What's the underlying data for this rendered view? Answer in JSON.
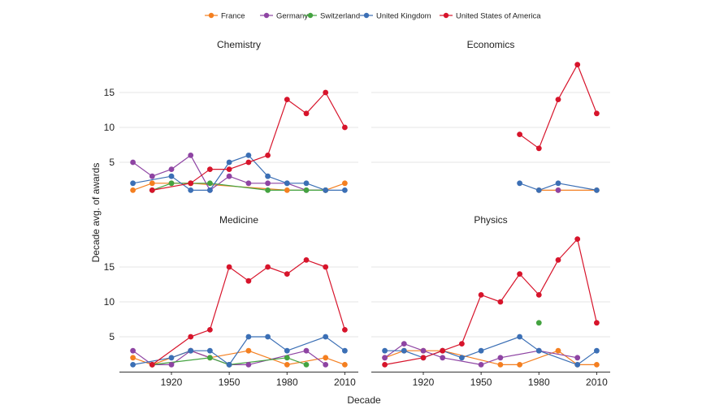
{
  "chart_data": {
    "type": "line",
    "xlabel": "Decade",
    "ylabel": "Decade avg. of awards",
    "x_ticks": [
      1920,
      1950,
      1980,
      2010
    ],
    "y_ticks": [
      5,
      10,
      15
    ],
    "xlim": [
      1893,
      2017
    ],
    "ylim": [
      0,
      20
    ],
    "legend_position": "top",
    "grid": "horizontal",
    "series_legend": [
      {
        "name": "France",
        "color": "#f47f20"
      },
      {
        "name": "Germany",
        "color": "#8e44a3"
      },
      {
        "name": "Switzerland",
        "color": "#44a340"
      },
      {
        "name": "United Kingdom",
        "color": "#3b6fb5"
      },
      {
        "name": "United States of America",
        "color": "#d7142b"
      }
    ],
    "panels": [
      {
        "title": "Chemistry",
        "series": [
          {
            "name": "France",
            "points": [
              [
                1900,
                1
              ],
              [
                1910,
                2
              ],
              [
                1920,
                2
              ],
              [
                1930,
                2
              ],
              [
                1980,
                1
              ],
              [
                2000,
                1
              ],
              [
                2010,
                2
              ]
            ]
          },
          {
            "name": "Germany",
            "points": [
              [
                1900,
                5
              ],
              [
                1910,
                3
              ],
              [
                1920,
                4
              ],
              [
                1930,
                6
              ],
              [
                1940,
                1
              ],
              [
                1950,
                3
              ],
              [
                1960,
                2
              ],
              [
                1970,
                2
              ],
              [
                1980,
                2
              ],
              [
                1990,
                1
              ],
              [
                2000,
                1
              ]
            ]
          },
          {
            "name": "Switzerland",
            "points": [
              [
                1910,
                1
              ],
              [
                1920,
                2
              ],
              [
                1930,
                2
              ],
              [
                1940,
                2
              ],
              [
                1970,
                1
              ],
              [
                1990,
                1
              ],
              [
                2000,
                1
              ]
            ]
          },
          {
            "name": "United Kingdom",
            "points": [
              [
                1900,
                2
              ],
              [
                1920,
                3
              ],
              [
                1930,
                1
              ],
              [
                1940,
                1
              ],
              [
                1950,
                5
              ],
              [
                1960,
                6
              ],
              [
                1970,
                3
              ],
              [
                1980,
                2
              ],
              [
                1990,
                2
              ],
              [
                2000,
                1
              ],
              [
                2010,
                1
              ]
            ]
          },
          {
            "name": "United States of America",
            "points": [
              [
                1910,
                1
              ],
              [
                1930,
                2
              ],
              [
                1940,
                4
              ],
              [
                1950,
                4
              ],
              [
                1960,
                5
              ],
              [
                1970,
                6
              ],
              [
                1980,
                14
              ],
              [
                1990,
                12
              ],
              [
                2000,
                15
              ],
              [
                2010,
                10
              ]
            ]
          }
        ]
      },
      {
        "title": "Economics",
        "series": [
          {
            "name": "France",
            "points": [
              [
                1980,
                1
              ],
              [
                1990,
                1
              ],
              [
                2010,
                1
              ]
            ]
          },
          {
            "name": "Germany",
            "points": [
              [
                1990,
                1
              ]
            ]
          },
          {
            "name": "United Kingdom",
            "points": [
              [
                1970,
                2
              ],
              [
                1980,
                1
              ],
              [
                1990,
                2
              ],
              [
                2010,
                1
              ]
            ]
          },
          {
            "name": "United States of America",
            "points": [
              [
                1970,
                9
              ],
              [
                1980,
                7
              ],
              [
                1990,
                14
              ],
              [
                2000,
                19
              ],
              [
                2010,
                12
              ]
            ]
          }
        ]
      },
      {
        "title": "Medicine",
        "series": [
          {
            "name": "France",
            "points": [
              [
                1900,
                2
              ],
              [
                1910,
                1
              ],
              [
                1930,
                3
              ],
              [
                1940,
                2
              ],
              [
                1960,
                3
              ],
              [
                1980,
                1
              ],
              [
                2000,
                2
              ],
              [
                2010,
                1
              ]
            ]
          },
          {
            "name": "Germany",
            "points": [
              [
                1900,
                3
              ],
              [
                1910,
                1
              ],
              [
                1920,
                1
              ],
              [
                1930,
                3
              ],
              [
                1950,
                1
              ],
              [
                1960,
                1
              ],
              [
                1990,
                3
              ],
              [
                2000,
                1
              ]
            ]
          },
          {
            "name": "Switzerland",
            "points": [
              [
                1910,
                1
              ],
              [
                1940,
                2
              ],
              [
                1950,
                1
              ],
              [
                1980,
                2
              ],
              [
                1990,
                1
              ]
            ]
          },
          {
            "name": "United Kingdom",
            "points": [
              [
                1900,
                1
              ],
              [
                1920,
                2
              ],
              [
                1930,
                3
              ],
              [
                1940,
                3
              ],
              [
                1950,
                1
              ],
              [
                1960,
                5
              ],
              [
                1970,
                5
              ],
              [
                1980,
                3
              ],
              [
                2000,
                5
              ],
              [
                2010,
                3
              ]
            ]
          },
          {
            "name": "United States of America",
            "points": [
              [
                1910,
                1
              ],
              [
                1930,
                5
              ],
              [
                1940,
                6
              ],
              [
                1950,
                15
              ],
              [
                1960,
                13
              ],
              [
                1970,
                15
              ],
              [
                1980,
                14
              ],
              [
                1990,
                16
              ],
              [
                2000,
                15
              ],
              [
                2010,
                6
              ]
            ]
          }
        ]
      },
      {
        "title": "Physics",
        "series": [
          {
            "name": "France",
            "points": [
              [
                1900,
                2
              ],
              [
                1910,
                3
              ],
              [
                1920,
                3
              ],
              [
                1930,
                3
              ],
              [
                1960,
                1
              ],
              [
                1970,
                1
              ],
              [
                1990,
                3
              ],
              [
                2000,
                1
              ],
              [
                2010,
                1
              ]
            ]
          },
          {
            "name": "Germany",
            "points": [
              [
                1900,
                2
              ],
              [
                1910,
                4
              ],
              [
                1920,
                3
              ],
              [
                1930,
                2
              ],
              [
                1950,
                1
              ],
              [
                1960,
                2
              ],
              [
                1980,
                3
              ],
              [
                2000,
                2
              ]
            ]
          },
          {
            "name": "Switzerland",
            "points": [
              [
                1980,
                7
              ]
            ]
          },
          {
            "name": "United Kingdom",
            "points": [
              [
                1900,
                3
              ],
              [
                1910,
                3
              ],
              [
                1920,
                2
              ],
              [
                1930,
                3
              ],
              [
                1940,
                2
              ],
              [
                1950,
                3
              ],
              [
                1970,
                5
              ],
              [
                1980,
                3
              ],
              [
                2000,
                1
              ],
              [
                2010,
                3
              ]
            ]
          },
          {
            "name": "United States of America",
            "points": [
              [
                1900,
                1
              ],
              [
                1920,
                2
              ],
              [
                1930,
                3
              ],
              [
                1940,
                4
              ],
              [
                1950,
                11
              ],
              [
                1960,
                10
              ],
              [
                1970,
                14
              ],
              [
                1980,
                11
              ],
              [
                1990,
                16
              ],
              [
                2000,
                19
              ],
              [
                2010,
                7
              ]
            ]
          }
        ]
      }
    ]
  }
}
